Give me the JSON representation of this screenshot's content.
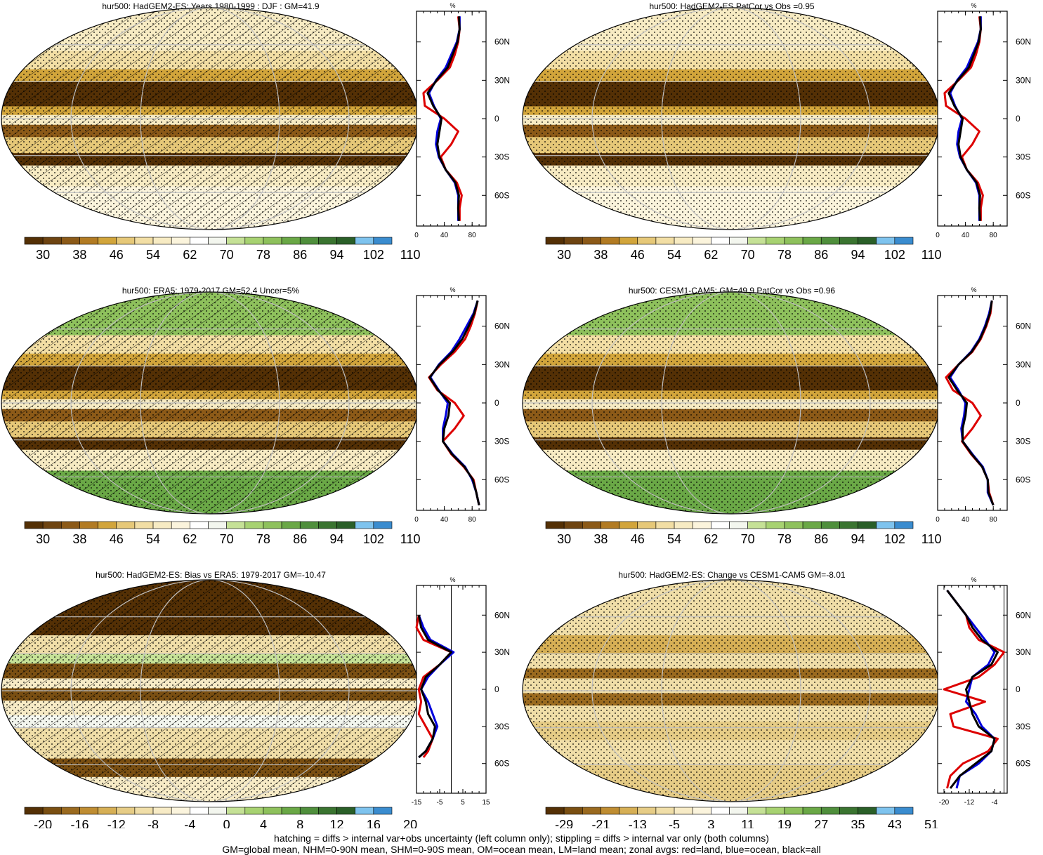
{
  "colors": {
    "abs_palette": [
      "#543005",
      "#6e4411",
      "#8c5a18",
      "#b27b23",
      "#d2a53b",
      "#e6c878",
      "#f2dea4",
      "#f7ebc3",
      "#fbf4dc",
      "#ffffff",
      "#f3f6ee",
      "#c5e196",
      "#a7d271",
      "#8ec15c",
      "#6aa846",
      "#4f8f3c",
      "#3a7430",
      "#2a5f28",
      "#7ec3ee",
      "#3a8ccf"
    ],
    "bias_palette": [
      "#543005",
      "#7a4f12",
      "#9a6a1f",
      "#bf8d32",
      "#d6af55",
      "#e6cc86",
      "#f0dea8",
      "#f7ebc6",
      "#fbf4dd",
      "#ffffff",
      "#f3f6ee",
      "#c5e196",
      "#a7d271",
      "#8ec15c",
      "#6aa846",
      "#4f8f3c",
      "#3a7430",
      "#2a5f28",
      "#7ec3ee",
      "#3a8ccf"
    ],
    "land": "#dd0000",
    "ocean": "#0000dd",
    "all": "#000000",
    "grid": "#bfbfbf"
  },
  "panels": [
    {
      "title": "hur500: HadGEM2-ES: Years 1980-1999 : DJF : GM=41.9",
      "colorbar_labels": [
        "30",
        "38",
        "46",
        "54",
        "62",
        "70",
        "78",
        "86",
        "94",
        "102",
        "110"
      ],
      "palette": "abs",
      "hatching": true,
      "profile_xticks": [
        "0",
        "40",
        "80"
      ],
      "profile_unit": "%",
      "lat_labels": [
        "60N",
        "30N",
        "0",
        "30S",
        "60S"
      ]
    },
    {
      "title": "hur500: HadGEM2-ES PatCor vs Obs =0.95",
      "colorbar_labels": [
        "30",
        "38",
        "46",
        "54",
        "62",
        "70",
        "78",
        "86",
        "94",
        "102",
        "110"
      ],
      "palette": "abs",
      "hatching": false,
      "profile_xticks": [
        "0",
        "40",
        "80"
      ],
      "profile_unit": "%",
      "lat_labels": [
        "60N",
        "30N",
        "0",
        "30S",
        "60S"
      ]
    },
    {
      "title": "hur500: ERA5: 1979-2017 GM=52.4 Uncer=5%",
      "colorbar_labels": [
        "30",
        "38",
        "46",
        "54",
        "62",
        "70",
        "78",
        "86",
        "94",
        "102",
        "110"
      ],
      "palette": "abs",
      "hatching": true,
      "profile_xticks": [
        "0",
        "40",
        "80"
      ],
      "profile_unit": "%",
      "lat_labels": [
        "60N",
        "30N",
        "0",
        "30S",
        "60S"
      ]
    },
    {
      "title": "hur500: CESM1-CAM5: GM=49.9 PatCor vs Obs =0.96",
      "colorbar_labels": [
        "30",
        "38",
        "46",
        "54",
        "62",
        "70",
        "78",
        "86",
        "94",
        "102",
        "110"
      ],
      "palette": "abs",
      "hatching": false,
      "profile_xticks": [
        "0",
        "40",
        "80"
      ],
      "profile_unit": "%",
      "lat_labels": [
        "60N",
        "30N",
        "0",
        "30S",
        "60S"
      ]
    },
    {
      "title": "hur500: HadGEM2-ES: Bias vs ERA5: 1979-2017 GM=-10.47",
      "colorbar_labels": [
        "-20",
        "-16",
        "-12",
        "-8",
        "-4",
        "0",
        "4",
        "8",
        "12",
        "16",
        "20"
      ],
      "palette": "bias",
      "hatching": true,
      "profile_xticks": [
        "-15",
        "-5",
        "5",
        "15"
      ],
      "profile_unit": "%",
      "lat_labels": [
        "60N",
        "30N",
        "0",
        "30S",
        "60S"
      ]
    },
    {
      "title": "hur500: HadGEM2-ES: Change vs CESM1-CAM5 GM=-8.01",
      "colorbar_labels": [
        "-29",
        "-21",
        "-13",
        "-5",
        "3",
        "11",
        "19",
        "27",
        "35",
        "43",
        "51"
      ],
      "palette": "bias",
      "hatching": false,
      "profile_xticks": [
        "-20",
        "-12",
        "-4"
      ],
      "profile_unit": "%",
      "lat_labels": [
        "60N",
        "30N",
        "0",
        "30S",
        "60S"
      ]
    }
  ],
  "footer": {
    "line1": "hatching = diffs > internal var+obs uncertainty (left column only); stippling = diffs > internal var only (both columns)",
    "line2": "GM=global mean, NHM=0-90N mean, SHM=0-90S mean, OM=ocean mean, LM=land mean; zonal avgs: red=land, blue=ocean, black=all"
  },
  "chart_data": [
    {
      "type": "line",
      "title": "hur500: HadGEM2-ES: Years 1980-1999 : DJF : GM=41.9",
      "xlabel": "%",
      "ylabel": "",
      "xlim": [
        0,
        100
      ],
      "ylim": [
        -90,
        90
      ],
      "y": [
        80,
        70,
        60,
        50,
        40,
        30,
        20,
        10,
        0,
        -10,
        -20,
        -30,
        -40,
        -50,
        -60,
        -70,
        -80
      ],
      "series": [
        {
          "name": "land",
          "values": [
            60,
            62,
            60,
            55,
            48,
            30,
            10,
            12,
            40,
            60,
            50,
            35,
            42,
            58,
            65,
            62,
            62
          ]
        },
        {
          "name": "ocean",
          "values": [
            62,
            62,
            58,
            50,
            42,
            28,
            18,
            25,
            35,
            30,
            28,
            32,
            42,
            55,
            60,
            60,
            60
          ]
        },
        {
          "name": "all",
          "values": [
            61,
            62,
            59,
            52,
            45,
            29,
            16,
            24,
            36,
            33,
            30,
            33,
            42,
            56,
            61,
            60,
            61
          ]
        }
      ],
      "colorbar": {
        "labels": [
          "30",
          "38",
          "46",
          "54",
          "62",
          "70",
          "78",
          "86",
          "94",
          "102",
          "110"
        ]
      }
    },
    {
      "type": "line",
      "title": "hur500: HadGEM2-ES PatCor vs Obs =0.95",
      "xlabel": "%",
      "ylabel": "",
      "xlim": [
        0,
        100
      ],
      "ylim": [
        -90,
        90
      ],
      "y": [
        80,
        70,
        60,
        50,
        40,
        30,
        20,
        10,
        0,
        -10,
        -20,
        -30,
        -40,
        -50,
        -60,
        -70,
        -80
      ],
      "series": [
        {
          "name": "land",
          "values": [
            60,
            62,
            60,
            55,
            48,
            30,
            10,
            12,
            40,
            60,
            50,
            35,
            42,
            58,
            65,
            62,
            62
          ]
        },
        {
          "name": "ocean",
          "values": [
            62,
            62,
            58,
            50,
            42,
            28,
            18,
            25,
            35,
            30,
            28,
            32,
            42,
            55,
            60,
            60,
            60
          ]
        },
        {
          "name": "all",
          "values": [
            61,
            62,
            59,
            52,
            45,
            29,
            16,
            24,
            36,
            33,
            30,
            33,
            42,
            56,
            61,
            60,
            61
          ]
        }
      ],
      "colorbar": {
        "labels": [
          "30",
          "38",
          "46",
          "54",
          "62",
          "70",
          "78",
          "86",
          "94",
          "102",
          "110"
        ]
      }
    },
    {
      "type": "line",
      "title": "hur500: ERA5: 1979-2017 GM=52.4 Uncer=5%",
      "xlabel": "%",
      "ylabel": "",
      "xlim": [
        0,
        100
      ],
      "ylim": [
        -90,
        90
      ],
      "y": [
        80,
        70,
        60,
        50,
        40,
        30,
        20,
        10,
        0,
        -10,
        -20,
        -30,
        -40,
        -50,
        -60,
        -70,
        -80
      ],
      "series": [
        {
          "name": "land",
          "values": [
            88,
            84,
            78,
            70,
            55,
            35,
            18,
            30,
            55,
            68,
            55,
            38,
            50,
            68,
            82,
            86,
            90
          ]
        },
        {
          "name": "ocean",
          "values": [
            88,
            82,
            72,
            62,
            50,
            32,
            20,
            32,
            45,
            42,
            38,
            38,
            52,
            70,
            80,
            86,
            90
          ]
        },
        {
          "name": "all",
          "values": [
            88,
            83,
            75,
            66,
            52,
            33,
            19,
            31,
            48,
            46,
            40,
            38,
            51,
            69,
            81,
            86,
            90
          ]
        }
      ],
      "colorbar": {
        "labels": [
          "30",
          "38",
          "46",
          "54",
          "62",
          "70",
          "78",
          "86",
          "94",
          "102",
          "110"
        ]
      }
    },
    {
      "type": "line",
      "title": "hur500: CESM1-CAM5: GM=49.9 PatCor vs Obs =0.96",
      "xlabel": "%",
      "ylabel": "",
      "xlim": [
        0,
        100
      ],
      "ylim": [
        -90,
        90
      ],
      "y": [
        80,
        70,
        60,
        50,
        40,
        30,
        20,
        10,
        0,
        -10,
        -20,
        -30,
        -40,
        -50,
        -60,
        -70,
        -80
      ],
      "series": [
        {
          "name": "land",
          "values": [
            78,
            76,
            70,
            62,
            50,
            30,
            12,
            22,
            50,
            62,
            50,
            35,
            48,
            64,
            72,
            74,
            80
          ]
        },
        {
          "name": "ocean",
          "values": [
            78,
            74,
            68,
            60,
            48,
            30,
            18,
            30,
            40,
            38,
            34,
            36,
            50,
            65,
            72,
            72,
            80
          ]
        },
        {
          "name": "all",
          "values": [
            78,
            75,
            69,
            61,
            49,
            30,
            16,
            28,
            42,
            40,
            36,
            36,
            49,
            64,
            72,
            73,
            80
          ]
        }
      ],
      "colorbar": {
        "labels": [
          "30",
          "38",
          "46",
          "54",
          "62",
          "70",
          "78",
          "86",
          "94",
          "102",
          "110"
        ]
      }
    },
    {
      "type": "line",
      "title": "hur500: HadGEM2-ES: Bias vs ERA5: 1979-2017 GM=-10.47",
      "xlabel": "%",
      "ylabel": "",
      "xlim": [
        -15,
        15
      ],
      "ylim": [
        -90,
        90
      ],
      "y": [
        60,
        50,
        40,
        30,
        20,
        10,
        0,
        -10,
        -20,
        -30,
        -40,
        -50,
        -55
      ],
      "series": [
        {
          "name": "land",
          "values": [
            -14,
            -15,
            -12,
            0,
            -5,
            -12,
            -14,
            -13,
            -14,
            -11,
            -8,
            -10,
            -12
          ]
        },
        {
          "name": "ocean",
          "values": [
            -14,
            -12,
            -9,
            1,
            -5,
            -10,
            -13,
            -10,
            -8,
            -6,
            -8,
            -11,
            -14
          ]
        },
        {
          "name": "all",
          "values": [
            -14,
            -13,
            -10,
            0,
            -5,
            -11,
            -13,
            -11,
            -10,
            -7,
            -8,
            -11,
            -14
          ]
        }
      ],
      "colorbar": {
        "labels": [
          "-20",
          "-16",
          "-12",
          "-8",
          "-4",
          "0",
          "4",
          "8",
          "12",
          "16",
          "20"
        ]
      }
    },
    {
      "type": "line",
      "title": "hur500: HadGEM2-ES: Change vs CESM1-CAM5 GM=-8.01",
      "xlabel": "%",
      "ylabel": "",
      "xlim": [
        -22,
        0
      ],
      "ylim": [
        -90,
        90
      ],
      "y": [
        80,
        70,
        60,
        50,
        40,
        30,
        20,
        10,
        0,
        -10,
        -20,
        -30,
        -40,
        -50,
        -60,
        -70,
        -80
      ],
      "series": [
        {
          "name": "land",
          "values": [
            -19,
            -16,
            -13,
            -12,
            -9,
            -1,
            -4,
            -9,
            -20,
            -7,
            -18,
            -17,
            -3,
            -6,
            -14,
            -18,
            -19
          ]
        },
        {
          "name": "ocean",
          "values": [
            -19,
            -16,
            -13,
            -10,
            -7,
            -4,
            -6,
            -11,
            -12,
            -13,
            -10,
            -8,
            -4,
            -5,
            -9,
            -15,
            -16
          ]
        },
        {
          "name": "all",
          "values": [
            -19,
            -16,
            -13,
            -11,
            -8,
            -3,
            -5,
            -11,
            -13,
            -12,
            -11,
            -9,
            -4,
            -5,
            -10,
            -15,
            -18
          ]
        }
      ],
      "colorbar": {
        "labels": [
          "-29",
          "-21",
          "-13",
          "-5",
          "3",
          "11",
          "19",
          "27",
          "35",
          "43",
          "51"
        ]
      }
    }
  ]
}
